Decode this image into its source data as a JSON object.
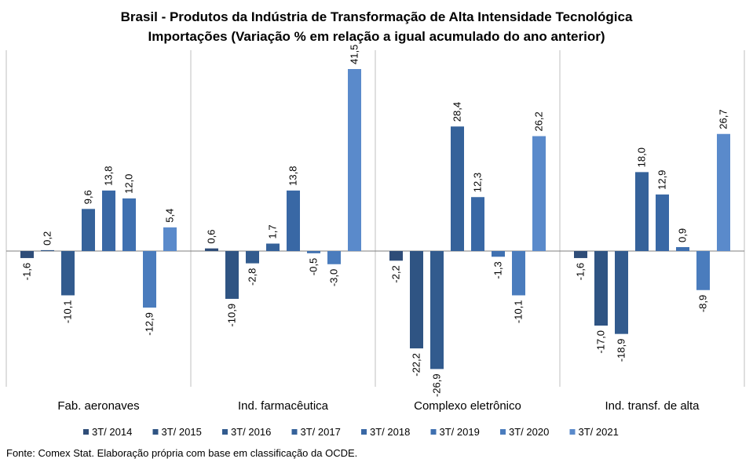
{
  "title": "Brasil - Produtos da Indústria de Transformação de Alta Intensidade Tecnológica",
  "subtitle": "Importações (Variação % em relação a igual acumulado do ano anterior)",
  "source": "Fonte: Comex Stat. Elaboração própria com base em classificação da OCDE.",
  "chart_data": {
    "type": "bar",
    "categories": [
      "Fab. aeronaves",
      "Ind. farmacêutica",
      "Complexo eletrônico",
      "Ind. transf. de alta"
    ],
    "series": [
      {
        "name": "3T/ 2014",
        "values": [
          -1.6,
          0.6,
          -2.2,
          -1.6
        ],
        "labels": [
          "-1,6",
          "0,6",
          "-2,2",
          "-1,6"
        ],
        "color": "#2f4d78"
      },
      {
        "name": "3T/ 2015",
        "values": [
          0.2,
          -10.9,
          -22.2,
          -17.0
        ],
        "labels": [
          "0,2",
          "-10,9",
          "-22,2",
          "-17,0"
        ],
        "color": "#2f5483"
      },
      {
        "name": "3T/ 2016",
        "values": [
          -10.1,
          -2.8,
          -26.9,
          -18.9
        ],
        "labels": [
          "-10,1",
          "-2,8",
          "-26,9",
          "-18,9"
        ],
        "color": "#325b8e"
      },
      {
        "name": "3T/ 2017",
        "values": [
          9.6,
          1.7,
          28.4,
          18.0
        ],
        "labels": [
          "9,6",
          "1,7",
          "28,4",
          "18,0"
        ],
        "color": "#35629a"
      },
      {
        "name": "3T/ 2018",
        "values": [
          13.8,
          13.8,
          12.3,
          12.9
        ],
        "labels": [
          "13,8",
          "13,8",
          "12,3",
          "12,9"
        ],
        "color": "#3968a5"
      },
      {
        "name": "3T/ 2019",
        "values": [
          12.0,
          -0.5,
          -1.3,
          0.9
        ],
        "labels": [
          "12,0",
          "-0,5",
          "-1,3",
          "0,9"
        ],
        "color": "#3f70b0"
      },
      {
        "name": "3T/ 2020",
        "values": [
          -12.9,
          -3.0,
          -10.1,
          -8.9
        ],
        "labels": [
          "-12,9",
          "-3,0",
          "-10,1",
          "-8,9"
        ],
        "color": "#4a7cbd"
      },
      {
        "name": "3T/ 2021",
        "values": [
          5.4,
          41.5,
          26.2,
          26.7
        ],
        "labels": [
          "5,4",
          "41,5",
          "26,2",
          "26,7"
        ],
        "color": "#5a8acb"
      }
    ],
    "ylim": [
      -31,
      46
    ],
    "grid": false,
    "legend": "bottom"
  }
}
